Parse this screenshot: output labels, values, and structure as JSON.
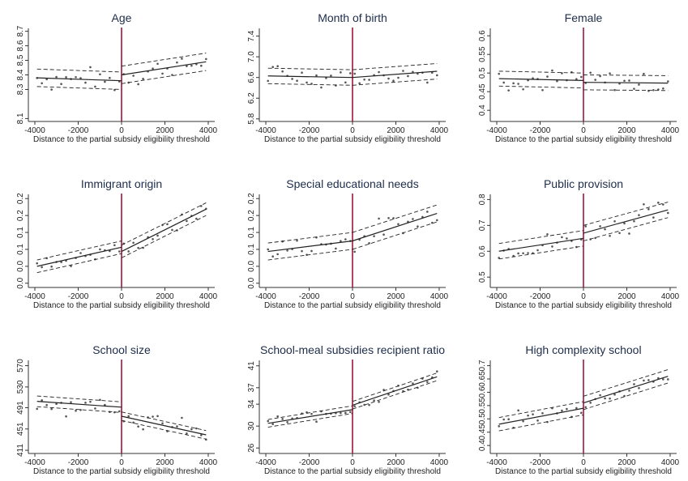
{
  "figure": {
    "background": "#ffffff",
    "threshold_color": "#a0163a",
    "line_color": "#222222",
    "point_color": "#555555"
  },
  "chart_data": [
    {
      "type": "scatter",
      "title": "Age",
      "xlabel": "Distance to the partial subsidy eligibility threshold",
      "xlim": [
        -4300,
        4300
      ],
      "xticks": [
        -4000,
        -2000,
        0,
        2000,
        4000
      ],
      "xtick_labels": [
        "-4000",
        "-2000",
        "0",
        "2000",
        "4000"
      ],
      "ylim": [
        8.08,
        8.72
      ],
      "yticks": [
        8.1,
        8.3,
        8.4,
        8.5,
        8.6,
        8.7
      ],
      "ytick_labels": [
        "8.1",
        "8.3",
        "8.4",
        "8.5",
        "8.6",
        "8.7"
      ],
      "threshold": 0,
      "fit_left": {
        "x": [
          -3900,
          0
        ],
        "y": [
          8.38,
          8.36
        ],
        "ci_width": 0.06
      },
      "fit_right": {
        "x": [
          0,
          3900
        ],
        "y": [
          8.4,
          8.49
        ],
        "ci_width": 0.06
      },
      "points": {
        "left_start": 8.38,
        "left_end": 8.36,
        "right_start": 8.4,
        "right_end": 8.49,
        "noise": 0.1,
        "count": 36
      }
    },
    {
      "type": "scatter",
      "title": "Month of birth",
      "xlabel": "Distance to the partial subsidy eligibility threshold",
      "xlim": [
        -4300,
        4300
      ],
      "xticks": [
        -4000,
        -2000,
        0,
        2000,
        4000
      ],
      "xtick_labels": [
        "-4000",
        "-2000",
        "0",
        "2000",
        "4000"
      ],
      "ylim": [
        5.75,
        7.55
      ],
      "yticks": [
        5.8,
        6.2,
        6.6,
        7.0,
        7.4
      ],
      "ytick_labels": [
        "5.8",
        "6.2",
        "6.6",
        "7.0",
        "7.4"
      ],
      "threshold": 0,
      "fit_left": {
        "x": [
          -3900,
          0
        ],
        "y": [
          6.63,
          6.6
        ],
        "ci_width": 0.15
      },
      "fit_right": {
        "x": [
          0,
          3900
        ],
        "y": [
          6.6,
          6.72
        ],
        "ci_width": 0.15
      },
      "points": {
        "left_start": 6.63,
        "left_end": 6.6,
        "right_start": 6.6,
        "right_end": 6.72,
        "noise": 0.25,
        "count": 36
      }
    },
    {
      "type": "scatter",
      "title": "Female",
      "xlabel": "Distance to the partial subsidy eligibility threshold",
      "xlim": [
        -4300,
        4300
      ],
      "xticks": [
        -4000,
        -2000,
        0,
        2000,
        4000
      ],
      "xtick_labels": [
        "-4000",
        "-2000",
        "0",
        "2000",
        "4000"
      ],
      "ylim": [
        0.37,
        0.62
      ],
      "yticks": [
        0.4,
        0.45,
        0.5,
        0.55,
        0.6
      ],
      "ytick_labels": [
        "0.4",
        "0.45",
        "0.5",
        "0.55",
        "0.6"
      ],
      "threshold": 0,
      "fit_left": {
        "x": [
          -3900,
          0
        ],
        "y": [
          0.485,
          0.48
        ],
        "ci_width": 0.02
      },
      "fit_right": {
        "x": [
          0,
          3900
        ],
        "y": [
          0.475,
          0.473
        ],
        "ci_width": 0.02
      },
      "points": {
        "left_start": 0.485,
        "left_end": 0.48,
        "right_start": 0.475,
        "right_end": 0.473,
        "noise": 0.04,
        "count": 36
      }
    },
    {
      "type": "scatter",
      "title": "Immigrant origin",
      "xlabel": "Distance to the partial subsidy eligibility threshold",
      "xlim": [
        -4300,
        4300
      ],
      "xticks": [
        -4000,
        -2000,
        0,
        2000,
        4000
      ],
      "xtick_labels": [
        "-4000",
        "-2000",
        "0",
        "2000",
        "4000"
      ],
      "ylim": [
        -0.01,
        0.21
      ],
      "yticks": [
        0.0,
        0.04,
        0.08,
        0.12,
        0.16,
        0.2
      ],
      "ytick_labels": [
        "0.0",
        "0.0",
        "0.1",
        "0.1",
        "0.2",
        "0.2"
      ],
      "threshold": 0,
      "fit_left": {
        "x": [
          -3900,
          0
        ],
        "y": [
          0.04,
          0.085
        ],
        "ci_width": 0.015
      },
      "fit_right": {
        "x": [
          0,
          3900
        ],
        "y": [
          0.075,
          0.175
        ],
        "ci_width": 0.015
      },
      "points": {
        "left_start": 0.04,
        "left_end": 0.085,
        "right_start": 0.075,
        "right_end": 0.175,
        "noise": 0.025,
        "count": 36
      }
    },
    {
      "type": "scatter",
      "title": "Special educational needs",
      "xlabel": "Distance to the partial subsidy eligibility threshold",
      "xlim": [
        -4300,
        4300
      ],
      "xticks": [
        -4000,
        -2000,
        0,
        2000,
        4000
      ],
      "xtick_labels": [
        "-4000",
        "-2000",
        "0",
        "2000",
        "4000"
      ],
      "ylim": [
        -0.01,
        0.21
      ],
      "yticks": [
        0.0,
        0.04,
        0.08,
        0.12,
        0.16,
        0.2
      ],
      "ytick_labels": [
        "0.0",
        "0.0",
        "0.1",
        "0.1",
        "0.2",
        "0.2"
      ],
      "threshold": 0,
      "fit_left": {
        "x": [
          -3900,
          0
        ],
        "y": [
          0.075,
          0.1
        ],
        "ci_width": 0.02
      },
      "fit_right": {
        "x": [
          0,
          3900
        ],
        "y": [
          0.1,
          0.165
        ],
        "ci_width": 0.02
      },
      "points": {
        "left_start": 0.075,
        "left_end": 0.1,
        "right_start": 0.1,
        "right_end": 0.165,
        "noise": 0.04,
        "count": 36
      }
    },
    {
      "type": "scatter",
      "title": "Public provision",
      "xlabel": "Distance to the partial subsidy eligibility threshold",
      "xlim": [
        -4300,
        4300
      ],
      "xticks": [
        -4000,
        -2000,
        0,
        2000,
        4000
      ],
      "xtick_labels": [
        "-4000",
        "-2000",
        "0",
        "2000",
        "4000"
      ],
      "ylim": [
        0.46,
        0.82
      ],
      "yticks": [
        0.5,
        0.6,
        0.7,
        0.8
      ],
      "ytick_labels": [
        "0.5",
        "0.6",
        "0.7",
        "0.8"
      ],
      "threshold": 0,
      "fit_left": {
        "x": [
          -3900,
          0
        ],
        "y": [
          0.6,
          0.65
        ],
        "ci_width": 0.03
      },
      "fit_right": {
        "x": [
          0,
          3900
        ],
        "y": [
          0.67,
          0.76
        ],
        "ci_width": 0.03
      },
      "points": {
        "left_start": 0.6,
        "left_end": 0.65,
        "right_start": 0.67,
        "right_end": 0.76,
        "noise": 0.06,
        "count": 36
      }
    },
    {
      "type": "scatter",
      "title": "School size",
      "xlabel": "Distance to the partial subsidy eligibility threshold",
      "xlim": [
        -4300,
        4300
      ],
      "xticks": [
        -4000,
        -2000,
        0,
        2000,
        4000
      ],
      "xtick_labels": [
        "-4000",
        "-2000",
        "0",
        "2000",
        "4000"
      ],
      "ylim": [
        405,
        580
      ],
      "yticks": [
        411,
        451,
        491,
        530,
        570
      ],
      "ytick_labels": [
        "411",
        "451",
        "491",
        "530",
        "570"
      ],
      "threshold": 0,
      "fit_left": {
        "x": [
          -3900,
          0
        ],
        "y": [
          503,
          492
        ],
        "ci_width": 10
      },
      "fit_right": {
        "x": [
          0,
          3900
        ],
        "y": [
          475,
          440
        ],
        "ci_width": 8
      },
      "points": {
        "left_start": 503,
        "left_end": 492,
        "right_start": 475,
        "right_end": 440,
        "noise": 25,
        "count": 36
      }
    },
    {
      "type": "scatter",
      "title": "School-meal subsidies recipient ratio",
      "xlabel": "Distance to the partial subsidy eligibility threshold",
      "xlim": [
        -4300,
        4300
      ],
      "xticks": [
        -4000,
        -2000,
        0,
        2000,
        4000
      ],
      "xtick_labels": [
        "-4000",
        "-2000",
        "0",
        "2000",
        "4000"
      ],
      "ylim": [
        25,
        42
      ],
      "yticks": [
        26,
        30,
        34,
        37,
        41
      ],
      "ytick_labels": [
        "26",
        "30",
        "34",
        "37",
        "41"
      ],
      "threshold": 0,
      "fit_left": {
        "x": [
          -3900,
          0
        ],
        "y": [
          30.5,
          33
        ],
        "ci_width": 0.7
      },
      "fit_right": {
        "x": [
          0,
          3900
        ],
        "y": [
          33.8,
          39
        ],
        "ci_width": 0.7
      },
      "points": {
        "left_start": 30.5,
        "left_end": 33,
        "right_start": 33.8,
        "right_end": 39,
        "noise": 1.5,
        "count": 36
      }
    },
    {
      "type": "scatter",
      "title": "High complexity school",
      "xlabel": "Distance to the partial subsidy eligibility threshold",
      "xlim": [
        -4300,
        4300
      ],
      "xticks": [
        -4000,
        -2000,
        0,
        2000,
        4000
      ],
      "xtick_labels": [
        "-4000",
        "-2000",
        "0",
        "2000",
        "4000"
      ],
      "ylim": [
        0.37,
        0.72
      ],
      "yticks": [
        0.4,
        0.45,
        0.5,
        0.55,
        0.6,
        0.65,
        0.7
      ],
      "ytick_labels": [
        "0.4",
        "0.45",
        "0.5",
        "0.55",
        "0.6",
        "0.65",
        "0.7"
      ],
      "threshold": 0,
      "fit_left": {
        "x": [
          -3900,
          0
        ],
        "y": [
          0.48,
          0.54
        ],
        "ci_width": 0.025
      },
      "fit_right": {
        "x": [
          0,
          3900
        ],
        "y": [
          0.56,
          0.66
        ],
        "ci_width": 0.025
      },
      "points": {
        "left_start": 0.48,
        "left_end": 0.54,
        "right_start": 0.56,
        "right_end": 0.66,
        "noise": 0.04,
        "count": 36
      }
    }
  ]
}
